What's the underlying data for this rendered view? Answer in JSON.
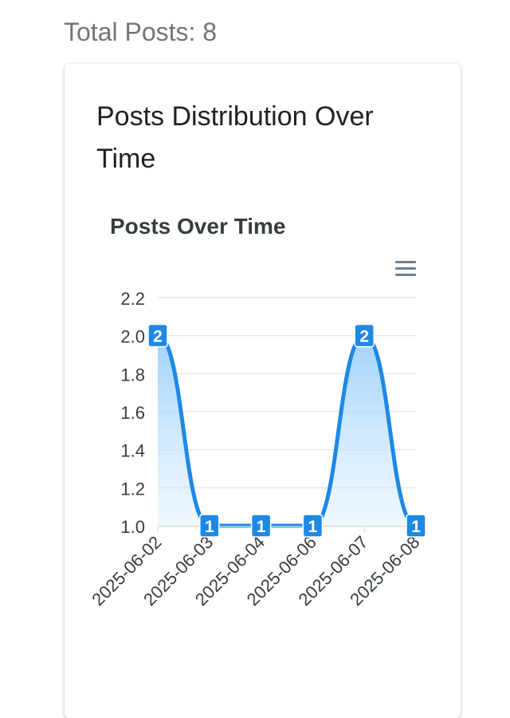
{
  "header": {
    "total_posts": "Total Posts: 8"
  },
  "card": {
    "title": "Posts Distribution Over Time"
  },
  "chart_data": {
    "type": "area",
    "title": "Posts Over Time",
    "xlabel": "",
    "ylabel": "",
    "categories": [
      "2025-06-02",
      "2025-06-03",
      "2025-06-04",
      "2025-06-06",
      "2025-06-07",
      "2025-06-08"
    ],
    "series": [
      {
        "values": [
          2,
          1,
          1,
          1,
          2,
          1
        ]
      }
    ],
    "data_labels": [
      "2",
      "1",
      "1",
      "1",
      "2",
      "1"
    ],
    "ylim": [
      1.0,
      2.2
    ],
    "yticks": [
      "1.0",
      "1.2",
      "1.4",
      "1.6",
      "1.8",
      "2.0",
      "2.2"
    ],
    "grid": true,
    "legend": "none",
    "colors": {
      "line": "#1E88E5",
      "fill_top": "#90CAF9",
      "fill_bottom": "#E3F2FD",
      "label_bg": "#1E88E5",
      "label_text": "#ffffff",
      "grid": "#E0E0E0",
      "axis_text": "#373D3F",
      "menu_icon": "#6E8192"
    },
    "toolbar_icon": "hamburger-menu-icon"
  }
}
